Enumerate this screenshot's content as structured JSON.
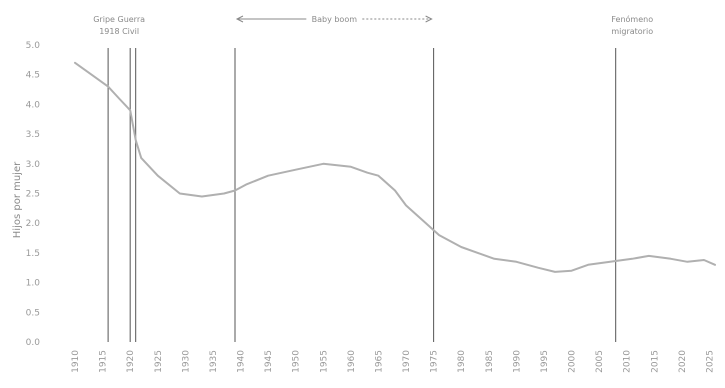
{
  "chart_data": {
    "type": "line",
    "title": "",
    "xlabel": "",
    "ylabel": "Hijos por mujer",
    "ylim": [
      0,
      5.0
    ],
    "yticks": [
      "0.0",
      "0.5",
      "1.0",
      "1.5",
      "2.0",
      "2.5",
      "3.0",
      "3.5",
      "4.0",
      "4.5",
      "5.0"
    ],
    "xticks": [
      "1910",
      "1915",
      "1920",
      "1925",
      "1930",
      "1935",
      "1940",
      "1945",
      "1950",
      "1955",
      "1960",
      "1965",
      "1970",
      "1975",
      "1980",
      "1985",
      "1990",
      "1995",
      "2000",
      "2005",
      "2010",
      "2015",
      "2020",
      "2025"
    ],
    "xlim": [
      1910,
      2026
    ],
    "grid": false,
    "series": [
      {
        "color": "#b0b0b0",
        "x": [
          1910,
          1913,
          1916,
          1918,
          1920,
          1921,
          1922,
          1925,
          1929,
          1933,
          1937,
          1939,
          1941,
          1945,
          1950,
          1955,
          1960,
          1963,
          1965,
          1968,
          1970,
          1973,
          1976,
          1980,
          1983,
          1986,
          1990,
          1994,
          1997,
          2000,
          2003,
          2007,
          2011,
          2014,
          2018,
          2021,
          2024,
          2026
        ],
        "y": [
          4.7,
          4.5,
          4.3,
          4.1,
          3.9,
          3.4,
          3.1,
          2.8,
          2.5,
          2.45,
          2.5,
          2.55,
          2.65,
          2.8,
          2.9,
          3.0,
          2.95,
          2.85,
          2.8,
          2.55,
          2.3,
          2.05,
          1.8,
          1.6,
          1.5,
          1.4,
          1.35,
          1.25,
          1.18,
          1.2,
          1.3,
          1.35,
          1.4,
          1.45,
          1.4,
          1.35,
          1.38,
          1.3
        ]
      }
    ],
    "markers": [
      {
        "year": 1916
      },
      {
        "year": 1920
      },
      {
        "year": 1921
      },
      {
        "year": 1939
      },
      {
        "year": 1975
      },
      {
        "year": 2008
      }
    ],
    "annotations": [
      {
        "text": "Gripe Guerra",
        "x": 1918,
        "row": 0
      },
      {
        "text": "1918  Civil",
        "x": 1918,
        "row": 1
      },
      {
        "text": "Baby boom",
        "x": 1957,
        "row": 0,
        "arrow": [
          1939,
          1975
        ]
      },
      {
        "text": "Fenómeno",
        "x": 2011,
        "row": 0
      },
      {
        "text": "migratorio",
        "x": 2011,
        "row": 1
      }
    ]
  }
}
